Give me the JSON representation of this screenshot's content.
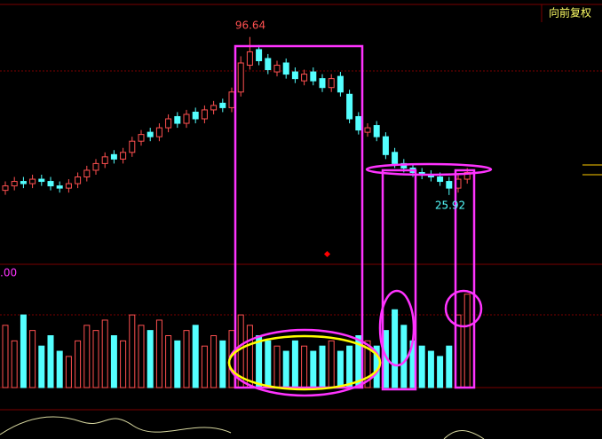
{
  "chart_data": {
    "type": "candlestick",
    "mode_label": "向前复权",
    "volume_label": ".00",
    "open": [
      28,
      30,
      32,
      31,
      33,
      32,
      30,
      29,
      31,
      34,
      37,
      40,
      44,
      42,
      45,
      50,
      54,
      52,
      56,
      61,
      58,
      63,
      60,
      64,
      67,
      65,
      72,
      84,
      91,
      87,
      81,
      85,
      81,
      77,
      81,
      78,
      74,
      79,
      71,
      61,
      54,
      57,
      52,
      45,
      40,
      38,
      36,
      35,
      34,
      32,
      29,
      33
    ],
    "high": [
      32,
      34,
      34,
      35,
      35,
      34,
      32,
      33,
      36,
      39,
      42,
      45,
      46,
      47,
      52,
      55,
      56,
      58,
      62,
      63,
      64,
      65,
      66,
      68,
      69,
      74,
      88,
      96.64,
      93,
      89,
      86,
      87,
      83,
      82,
      83,
      80,
      80,
      81,
      73,
      63,
      58,
      59,
      54,
      47,
      42,
      40,
      38,
      37,
      36,
      34,
      35,
      38
    ],
    "low": [
      26,
      28,
      29,
      29,
      30,
      28,
      27,
      27,
      29,
      32,
      35,
      38,
      40,
      40,
      43,
      48,
      50,
      50,
      54,
      56,
      56,
      58,
      58,
      62,
      63,
      63,
      70,
      82,
      84,
      80,
      79,
      78,
      76,
      75,
      75,
      72,
      72,
      70,
      58,
      53,
      52,
      50,
      42,
      38,
      36,
      34,
      33,
      32,
      30,
      25.92,
      27,
      31
    ],
    "close": [
      30,
      32,
      31,
      33,
      32,
      30,
      29,
      31,
      34,
      37,
      40,
      43,
      42,
      45,
      50,
      53,
      52,
      56,
      60,
      58,
      62,
      60,
      64,
      66,
      65,
      72,
      85,
      90,
      86,
      82,
      84,
      80,
      78,
      80,
      77,
      74,
      78,
      72,
      60,
      55,
      56,
      52,
      44,
      40,
      38,
      36,
      35,
      34,
      32,
      29,
      33,
      36
    ],
    "volume": [
      60,
      45,
      70,
      55,
      40,
      50,
      35,
      30,
      45,
      60,
      55,
      65,
      50,
      45,
      70,
      60,
      55,
      65,
      50,
      45,
      55,
      60,
      40,
      50,
      45,
      55,
      70,
      60,
      50,
      45,
      40,
      35,
      45,
      40,
      35,
      40,
      45,
      35,
      40,
      50,
      45,
      40,
      55,
      75,
      60,
      45,
      40,
      35,
      30,
      40,
      70,
      90
    ],
    "up_color": "#ff5050",
    "down_color": "#54ffff",
    "ylim": [
      10,
      110
    ],
    "y2lim": [
      0,
      100
    ]
  }
}
